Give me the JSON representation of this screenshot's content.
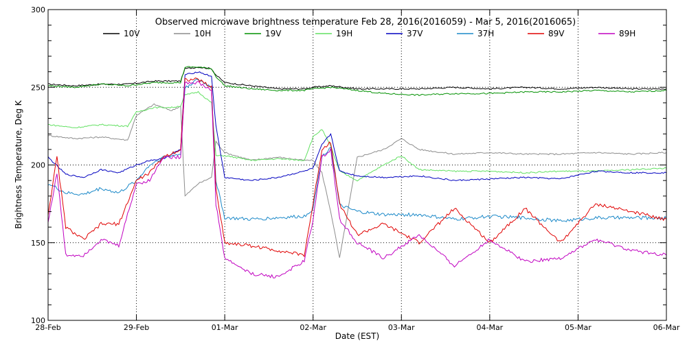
{
  "chart_data": {
    "type": "line",
    "title": "Observed microwave brightness temperature Feb 28, 2016(2016059) - Mar  5, 2016(2016065)",
    "xlabel": "Date (EST)",
    "ylabel": "Brightness Temperature, Deg K",
    "x_unit": "day (Feb 28 = 0)",
    "xlim": [
      0,
      7
    ],
    "ylim": [
      100,
      300
    ],
    "x_tick_values": [
      0,
      1,
      2,
      3,
      4,
      5,
      6,
      7
    ],
    "x_tick_labels": [
      "28-Feb",
      "29-Feb",
      "01-Mar",
      "02-Mar",
      "03-Mar",
      "04-Mar",
      "05-Mar",
      "06-Mar"
    ],
    "y_tick_values": [
      100,
      150,
      200,
      250,
      300
    ],
    "y_tick_labels": [
      "100",
      "150",
      "200",
      "250",
      "300"
    ],
    "grid": "dotted at labeled ticks",
    "legend_position": "top",
    "series": [
      {
        "name": "10V",
        "color": "#000000",
        "x": [
          0,
          0.3,
          0.6,
          0.9,
          1.2,
          1.5,
          1.55,
          1.7,
          1.85,
          1.9,
          2.0,
          2.3,
          2.6,
          2.9,
          3.0,
          3.2,
          3.5,
          3.8,
          4.2,
          4.6,
          5.0,
          5.4,
          5.8,
          6.2,
          6.6,
          7.0
        ],
        "y": [
          252,
          251,
          252,
          252,
          254,
          254,
          262,
          263,
          262,
          258,
          253,
          251,
          249,
          249,
          250,
          251,
          249,
          249,
          249,
          250,
          249,
          250,
          249,
          250,
          249,
          249
        ]
      },
      {
        "name": "10H",
        "color": "#8c8c8c",
        "x": [
          0,
          0.3,
          0.6,
          0.9,
          1.0,
          1.2,
          1.4,
          1.5,
          1.55,
          1.7,
          1.85,
          1.9,
          2.0,
          2.3,
          2.6,
          2.9,
          3.0,
          3.1,
          3.2,
          3.3,
          3.5,
          3.8,
          4.0,
          4.2,
          4.6,
          5.0,
          5.4,
          5.8,
          6.2,
          6.6,
          7.0
        ],
        "y": [
          219,
          217,
          218,
          216,
          232,
          239,
          235,
          238,
          180,
          188,
          192,
          215,
          208,
          203,
          205,
          203,
          203,
          195,
          170,
          140,
          205,
          210,
          217,
          210,
          207,
          208,
          207,
          207,
          208,
          207,
          208
        ]
      },
      {
        "name": "19V",
        "color": "#009000",
        "x": [
          0,
          0.3,
          0.6,
          0.9,
          1.2,
          1.5,
          1.55,
          1.7,
          1.85,
          1.9,
          2.0,
          2.3,
          2.6,
          2.9,
          3.0,
          3.2,
          3.5,
          3.8,
          4.2,
          4.6,
          5.0,
          5.4,
          5.8,
          6.2,
          6.6,
          7.0
        ],
        "y": [
          251,
          250,
          252,
          251,
          253,
          253,
          263,
          263,
          262,
          257,
          251,
          249,
          248,
          248,
          249,
          250,
          248,
          246,
          245,
          246,
          246,
          247,
          247,
          248,
          247,
          248
        ]
      },
      {
        "name": "19H",
        "color": "#60e060",
        "x": [
          0,
          0.3,
          0.6,
          0.9,
          1.0,
          1.2,
          1.4,
          1.5,
          1.55,
          1.7,
          1.85,
          1.9,
          2.0,
          2.3,
          2.6,
          2.9,
          3.0,
          3.1,
          3.2,
          3.3,
          3.5,
          3.8,
          4.0,
          4.2,
          4.6,
          5.0,
          5.4,
          5.8,
          6.2,
          6.6,
          7.0
        ],
        "y": [
          226,
          224,
          226,
          225,
          234,
          237,
          237,
          238,
          245,
          247,
          240,
          206,
          206,
          203,
          204,
          203,
          218,
          223,
          212,
          196,
          190,
          200,
          206,
          197,
          196,
          196,
          195,
          196,
          196,
          197,
          198
        ]
      },
      {
        "name": "37V",
        "color": "#0000c0",
        "x": [
          0,
          0.2,
          0.4,
          0.6,
          0.8,
          1.0,
          1.15,
          1.3,
          1.5,
          1.55,
          1.7,
          1.85,
          1.9,
          2.0,
          2.3,
          2.6,
          2.9,
          3.0,
          3.1,
          3.2,
          3.3,
          3.5,
          3.8,
          4.2,
          4.6,
          5.0,
          5.4,
          5.8,
          6.2,
          6.6,
          7.0
        ],
        "y": [
          205,
          194,
          192,
          197,
          195,
          200,
          203,
          204,
          210,
          258,
          260,
          257,
          225,
          192,
          190,
          192,
          196,
          198,
          213,
          220,
          196,
          193,
          192,
          193,
          190,
          191,
          192,
          191,
          196,
          195,
          195
        ]
      },
      {
        "name": "37H",
        "color": "#1a88c8",
        "x": [
          0,
          0.2,
          0.4,
          0.6,
          0.8,
          1.0,
          1.15,
          1.3,
          1.5,
          1.55,
          1.7,
          1.85,
          1.9,
          2.0,
          2.3,
          2.6,
          2.9,
          3.0,
          3.1,
          3.2,
          3.3,
          3.5,
          3.8,
          4.2,
          4.6,
          5.0,
          5.4,
          5.8,
          6.2,
          6.6,
          7.0
        ],
        "y": [
          188,
          182,
          181,
          185,
          182,
          190,
          200,
          205,
          207,
          250,
          255,
          250,
          190,
          166,
          165,
          166,
          167,
          172,
          205,
          212,
          174,
          170,
          168,
          168,
          165,
          167,
          166,
          164,
          166,
          166,
          166
        ]
      },
      {
        "name": "89V",
        "color": "#e00000",
        "x": [
          0,
          0.1,
          0.2,
          0.4,
          0.6,
          0.8,
          1.0,
          1.15,
          1.3,
          1.5,
          1.55,
          1.7,
          1.85,
          1.9,
          2.0,
          2.3,
          2.6,
          2.9,
          3.0,
          3.1,
          3.2,
          3.3,
          3.5,
          3.8,
          4.2,
          4.6,
          5.0,
          5.4,
          5.8,
          6.2,
          6.6,
          7.0
        ],
        "y": [
          168,
          205,
          160,
          152,
          162,
          162,
          190,
          195,
          205,
          210,
          255,
          255,
          250,
          185,
          150,
          148,
          145,
          142,
          175,
          210,
          215,
          175,
          155,
          162,
          150,
          172,
          150,
          172,
          150,
          175,
          170,
          165
        ]
      },
      {
        "name": "89H",
        "color": "#c000c0",
        "x": [
          0,
          0.1,
          0.2,
          0.4,
          0.6,
          0.8,
          1.0,
          1.15,
          1.3,
          1.5,
          1.55,
          1.7,
          1.85,
          1.9,
          2.0,
          2.3,
          2.6,
          2.9,
          3.0,
          3.1,
          3.2,
          3.3,
          3.5,
          3.8,
          4.2,
          4.6,
          5.0,
          5.4,
          5.8,
          6.2,
          6.6,
          7.0
        ],
        "y": [
          163,
          195,
          142,
          142,
          152,
          148,
          188,
          190,
          205,
          205,
          253,
          253,
          248,
          175,
          140,
          130,
          128,
          138,
          165,
          205,
          210,
          165,
          150,
          140,
          155,
          135,
          152,
          138,
          140,
          152,
          145,
          142
        ]
      }
    ]
  }
}
